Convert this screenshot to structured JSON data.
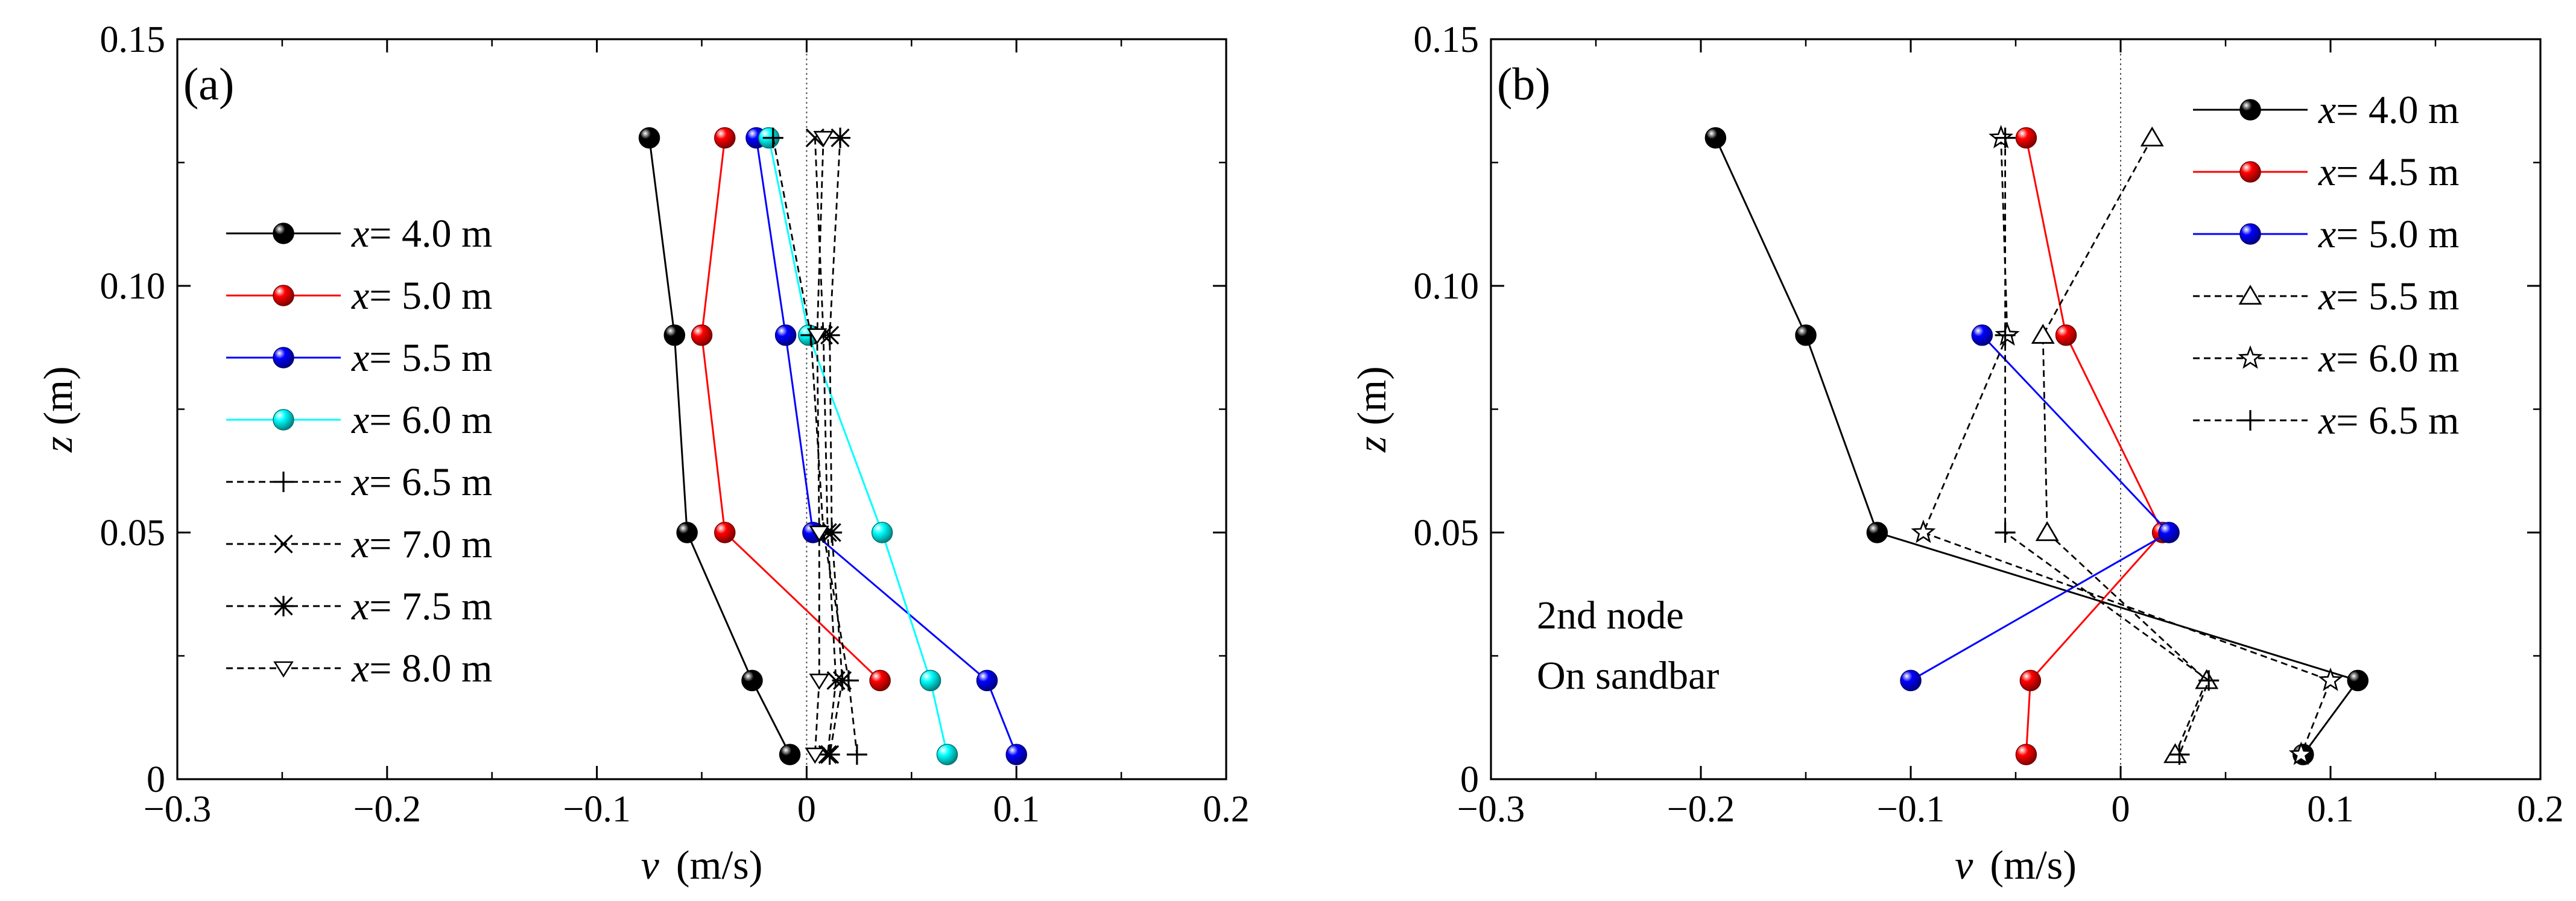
{
  "figure": {
    "panels": [
      "a",
      "b"
    ]
  },
  "chart_data": [
    {
      "type": "line",
      "panel_label": "(a)",
      "xlabel_var": "v",
      "xlabel_unit": "(m/s)",
      "ylabel_var": "z",
      "ylabel_unit": "(m)",
      "xlim": [
        -0.3,
        0.2
      ],
      "ylim": [
        0,
        0.15
      ],
      "xticks": [
        -0.3,
        -0.2,
        -0.1,
        0,
        0.1,
        0.2
      ],
      "xtick_labels": [
        "−0.3",
        "−0.2",
        "−0.1",
        "0",
        "0.1",
        "0.2"
      ],
      "yticks": [
        0,
        0.05,
        0.1,
        0.15
      ],
      "ytick_labels": [
        "0",
        "0.05",
        "0.10",
        "0.15"
      ],
      "zero_line": true,
      "legend_position": "left",
      "annotations": [],
      "series": [
        {
          "name": "x= 4.0 m",
          "legend_var": "x",
          "legend_rest": "= 4.0 m",
          "style": "solid",
          "color": "#000000",
          "marker": "sphere",
          "points": [
            [
              -0.075,
              0.13
            ],
            [
              -0.063,
              0.09
            ],
            [
              -0.057,
              0.05
            ],
            [
              -0.026,
              0.02
            ],
            [
              -0.008,
              0.005
            ]
          ]
        },
        {
          "name": "x= 5.0 m",
          "legend_var": "x",
          "legend_rest": "= 5.0 m",
          "style": "solid",
          "color": "#ff0000",
          "marker": "sphere",
          "points": [
            [
              -0.039,
              0.13
            ],
            [
              -0.05,
              0.09
            ],
            [
              -0.039,
              0.05
            ],
            [
              0.035,
              0.02
            ]
          ]
        },
        {
          "name": "x= 5.5 m",
          "legend_var": "x",
          "legend_rest": "= 5.5 m",
          "style": "solid",
          "color": "#0000ff",
          "marker": "sphere",
          "points": [
            [
              -0.024,
              0.13
            ],
            [
              -0.01,
              0.09
            ],
            [
              0.003,
              0.05
            ],
            [
              0.086,
              0.02
            ],
            [
              0.1,
              0.005
            ]
          ]
        },
        {
          "name": "x= 6.0 m",
          "legend_var": "x",
          "legend_rest": "= 6.0 m",
          "style": "solid",
          "color": "#00ffff",
          "marker": "sphere",
          "points": [
            [
              -0.018,
              0.13
            ],
            [
              0.001,
              0.09
            ],
            [
              0.036,
              0.05
            ],
            [
              0.059,
              0.02
            ],
            [
              0.067,
              0.005
            ]
          ]
        },
        {
          "name": "x= 6.5 m",
          "legend_var": "x",
          "legend_rest": "= 6.5 m",
          "style": "dash",
          "color": "#000000",
          "marker": "plus",
          "points": [
            [
              -0.016,
              0.13
            ],
            [
              0.002,
              0.09
            ],
            [
              0.008,
              0.05
            ],
            [
              0.02,
              0.02
            ],
            [
              0.024,
              0.005
            ]
          ]
        },
        {
          "name": "x= 7.0 m",
          "legend_var": "x",
          "legend_rest": "= 7.0 m",
          "style": "dash",
          "color": "#000000",
          "marker": "x",
          "points": [
            [
              0.004,
              0.13
            ],
            [
              0.008,
              0.09
            ],
            [
              0.01,
              0.05
            ],
            [
              0.014,
              0.02
            ],
            [
              0.01,
              0.005
            ]
          ]
        },
        {
          "name": "x= 7.5 m",
          "legend_var": "x",
          "legend_rest": "= 7.5 m",
          "style": "dash",
          "color": "#000000",
          "marker": "asterisk",
          "points": [
            [
              0.016,
              0.13
            ],
            [
              0.011,
              0.09
            ],
            [
              0.012,
              0.05
            ],
            [
              0.017,
              0.02
            ],
            [
              0.011,
              0.005
            ]
          ]
        },
        {
          "name": "x= 8.0 m",
          "legend_var": "x",
          "legend_rest": "= 8.0 m",
          "style": "dash",
          "color": "#000000",
          "marker": "tri-down",
          "points": [
            [
              0.008,
              0.13
            ],
            [
              0.005,
              0.09
            ],
            [
              0.006,
              0.05
            ],
            [
              0.006,
              0.02
            ],
            [
              0.004,
              0.005
            ]
          ]
        }
      ]
    },
    {
      "type": "line",
      "panel_label": "(b)",
      "xlabel_var": "v",
      "xlabel_unit": "(m/s)",
      "ylabel_var": "z",
      "ylabel_unit": "(m)",
      "xlim": [
        -0.3,
        0.2
      ],
      "ylim": [
        0,
        0.15
      ],
      "xticks": [
        -0.3,
        -0.2,
        -0.1,
        0,
        0.1,
        0.2
      ],
      "xtick_labels": [
        "−0.3",
        "−0.2",
        "−0.1",
        "0",
        "0.1",
        "0.2"
      ],
      "yticks": [
        0,
        0.05,
        0.1,
        0.15
      ],
      "ytick_labels": [
        "0",
        "0.05",
        "0.10",
        "0.15"
      ],
      "zero_line": true,
      "legend_position": "top-right",
      "annotations": [
        "2nd node",
        "On sandbar"
      ],
      "series": [
        {
          "name": "x= 4.0 m",
          "legend_var": "x",
          "legend_rest": "= 4.0 m",
          "style": "solid",
          "color": "#000000",
          "marker": "sphere",
          "points": [
            [
              -0.193,
              0.13
            ],
            [
              -0.15,
              0.09
            ],
            [
              -0.116,
              0.05
            ],
            [
              0.113,
              0.02
            ],
            [
              0.087,
              0.005
            ]
          ]
        },
        {
          "name": "x= 4.5 m",
          "legend_var": "x",
          "legend_rest": "= 4.5 m",
          "style": "solid",
          "color": "#ff0000",
          "marker": "sphere",
          "points": [
            [
              -0.045,
              0.13
            ],
            [
              -0.026,
              0.09
            ],
            [
              0.02,
              0.05
            ],
            [
              -0.043,
              0.02
            ],
            [
              -0.045,
              0.005
            ]
          ]
        },
        {
          "name": "x= 5.0 m",
          "legend_var": "x",
          "legend_rest": "= 5.0 m",
          "style": "solid",
          "color": "#0000ff",
          "marker": "sphere",
          "points": [
            [
              -0.066,
              0.09
            ],
            [
              0.023,
              0.05
            ],
            [
              -0.1,
              0.02
            ]
          ]
        },
        {
          "name": "x= 5.5 m",
          "legend_var": "x",
          "legend_rest": "= 5.5 m",
          "style": "dash",
          "color": "#000000",
          "marker": "triangle",
          "points": [
            [
              0.015,
              0.13
            ],
            [
              -0.037,
              0.09
            ],
            [
              -0.035,
              0.05
            ],
            [
              0.041,
              0.02
            ],
            [
              0.026,
              0.005
            ]
          ]
        },
        {
          "name": "x= 6.0 m",
          "legend_var": "x",
          "legend_rest": "= 6.0 m",
          "style": "dash",
          "color": "#000000",
          "marker": "star",
          "points": [
            [
              -0.057,
              0.13
            ],
            [
              -0.054,
              0.09
            ],
            [
              -0.094,
              0.05
            ],
            [
              0.1,
              0.02
            ],
            [
              0.086,
              0.005
            ]
          ]
        },
        {
          "name": "x= 6.5 m",
          "legend_var": "x",
          "legend_rest": "= 6.5 m",
          "style": "dash",
          "color": "#000000",
          "marker": "plus",
          "points": [
            [
              -0.055,
              0.13
            ],
            [
              -0.055,
              0.09
            ],
            [
              -0.055,
              0.05
            ],
            [
              0.042,
              0.02
            ],
            [
              0.028,
              0.005
            ]
          ]
        }
      ]
    }
  ]
}
